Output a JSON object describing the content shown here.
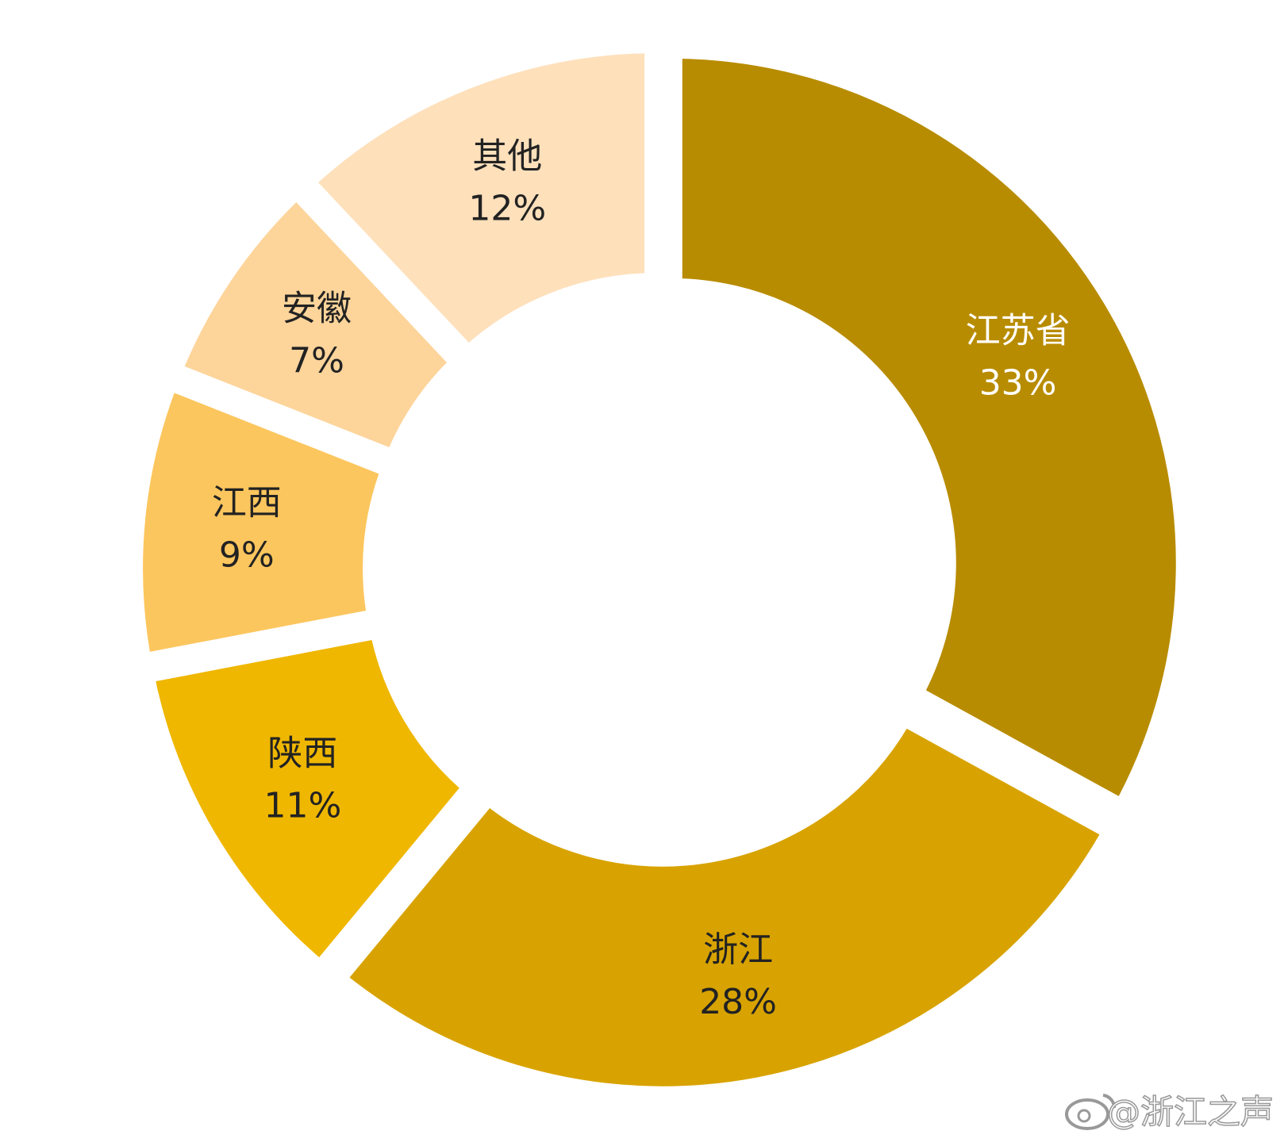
{
  "chart_data": {
    "type": "donut",
    "categories": [
      "江苏省",
      "浙江",
      "陕西",
      "江西",
      "安徽",
      "其他"
    ],
    "values": [
      33,
      28,
      11,
      9,
      7,
      12
    ],
    "value_labels": [
      "33%",
      "28%",
      "11%",
      "9%",
      "7%",
      "12%"
    ],
    "colors": [
      "#b88c00",
      "#d8a300",
      "#efb700",
      "#fcc65e",
      "#fdd49a",
      "#fee0bb"
    ],
    "watermark": "@浙江之声"
  }
}
